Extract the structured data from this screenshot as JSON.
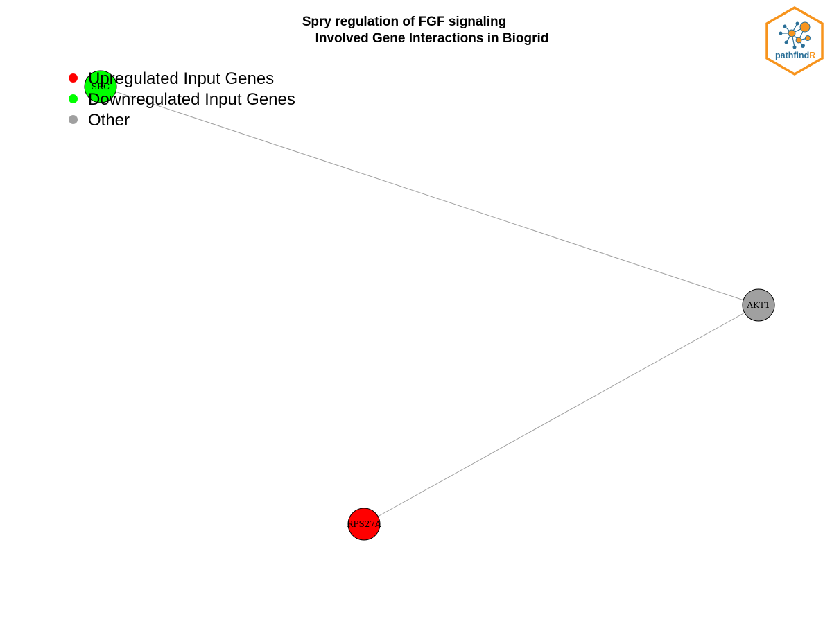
{
  "title": {
    "line1": "Spry regulation of FGF signaling",
    "line2": "Involved Gene Interactions in Biogrid"
  },
  "colors": {
    "upregulated": "#ff0000",
    "downregulated": "#00ff00",
    "other": "#a0a0a0",
    "edge": "#a0a0a0",
    "logo_orange": "#f7941d",
    "logo_blue": "#2a6f97"
  },
  "legend": {
    "items": [
      {
        "label": "Upregulated Input Genes",
        "color": "#ff0000"
      },
      {
        "label": "Downregulated Input Genes",
        "color": "#00ff00"
      },
      {
        "label": "Other",
        "color": "#a0a0a0"
      }
    ]
  },
  "network": {
    "nodes": [
      {
        "id": "SRC",
        "label": "SRC",
        "category": "downregulated"
      },
      {
        "id": "AKT1",
        "label": "AKT1",
        "category": "other"
      },
      {
        "id": "RPS27A",
        "label": "RPS27A",
        "category": "upregulated"
      }
    ],
    "edges": [
      {
        "source": "SRC",
        "target": "AKT1"
      },
      {
        "source": "AKT1",
        "target": "RPS27A"
      }
    ]
  },
  "logo": {
    "text_main": "pathfind",
    "text_accent": "R",
    "icon": "network-graph-icon"
  }
}
